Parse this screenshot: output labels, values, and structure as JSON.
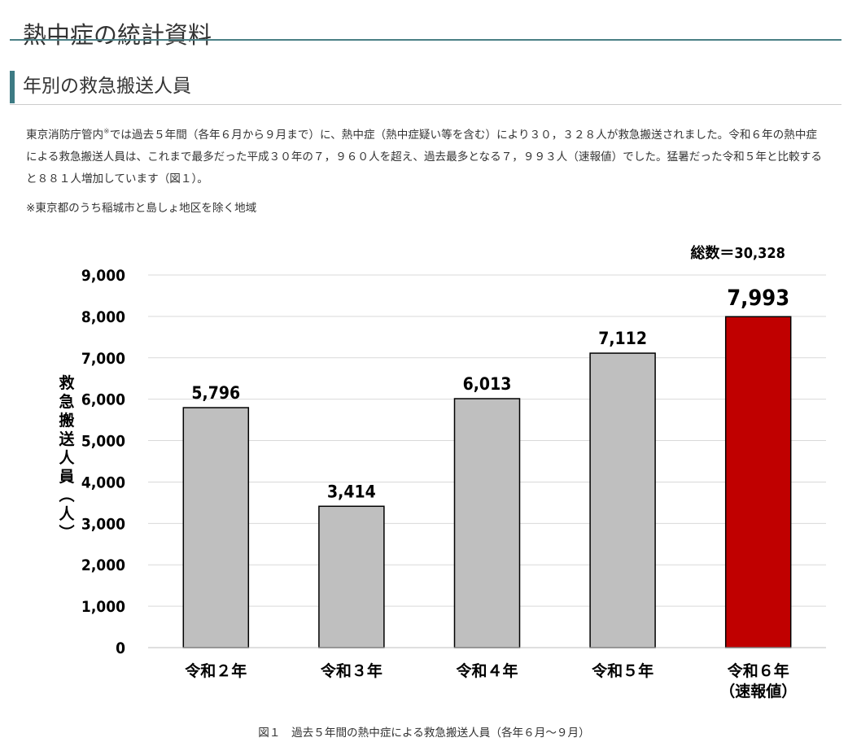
{
  "page": {
    "title": "熱中症の統計資料"
  },
  "section": {
    "heading": "年別の救急搬送人員",
    "body_before_mark": "東京消防庁管内",
    "body_mark": "※",
    "body_after_mark": "では過去５年間（各年６月から９月まで）に、熱中症（熱中症疑い等を含む）により３０，３２８人が救急搬送されました。令和６年の熱中症による救急搬送人員は、これまで最多だった平成３０年の７，９６０人を超え、過去最多となる７，９９３人（速報値）でした。猛暑だった令和５年と比較すると８８１人増加しています（図１）。",
    "footnote": "※東京都のうち稲城市と島しょ地区を除く地域"
  },
  "chart_data": {
    "type": "bar",
    "categories": [
      "令和２年",
      "令和３年",
      "令和４年",
      "令和５年",
      "令和６年"
    ],
    "category_sublabels": [
      "",
      "",
      "",
      "",
      "（速報値）"
    ],
    "values": [
      5796,
      3414,
      6013,
      7112,
      7993
    ],
    "value_labels": [
      "5,796",
      "3,414",
      "6,013",
      "7,112",
      "7,993"
    ],
    "ylabel": "救急搬送人員（人）",
    "ylim": [
      0,
      9000
    ],
    "yticks": [
      0,
      1000,
      2000,
      3000,
      4000,
      5000,
      6000,
      7000,
      8000,
      9000
    ],
    "ytick_labels": [
      "0",
      "1,000",
      "2,000",
      "3,000",
      "4,000",
      "5,000",
      "6,000",
      "7,000",
      "8,000",
      "9,000"
    ],
    "annotation": "総数＝30,328",
    "grid": true,
    "colors": {
      "default_bar": "#bfbfbf",
      "highlight_bar": "#c00000",
      "bar_outline": "#000000",
      "gridline": "#d9d9d9"
    },
    "highlight_index": 4,
    "caption": "図１　過去５年間の熱中症による救急搬送人員（各年６月～９月）"
  }
}
